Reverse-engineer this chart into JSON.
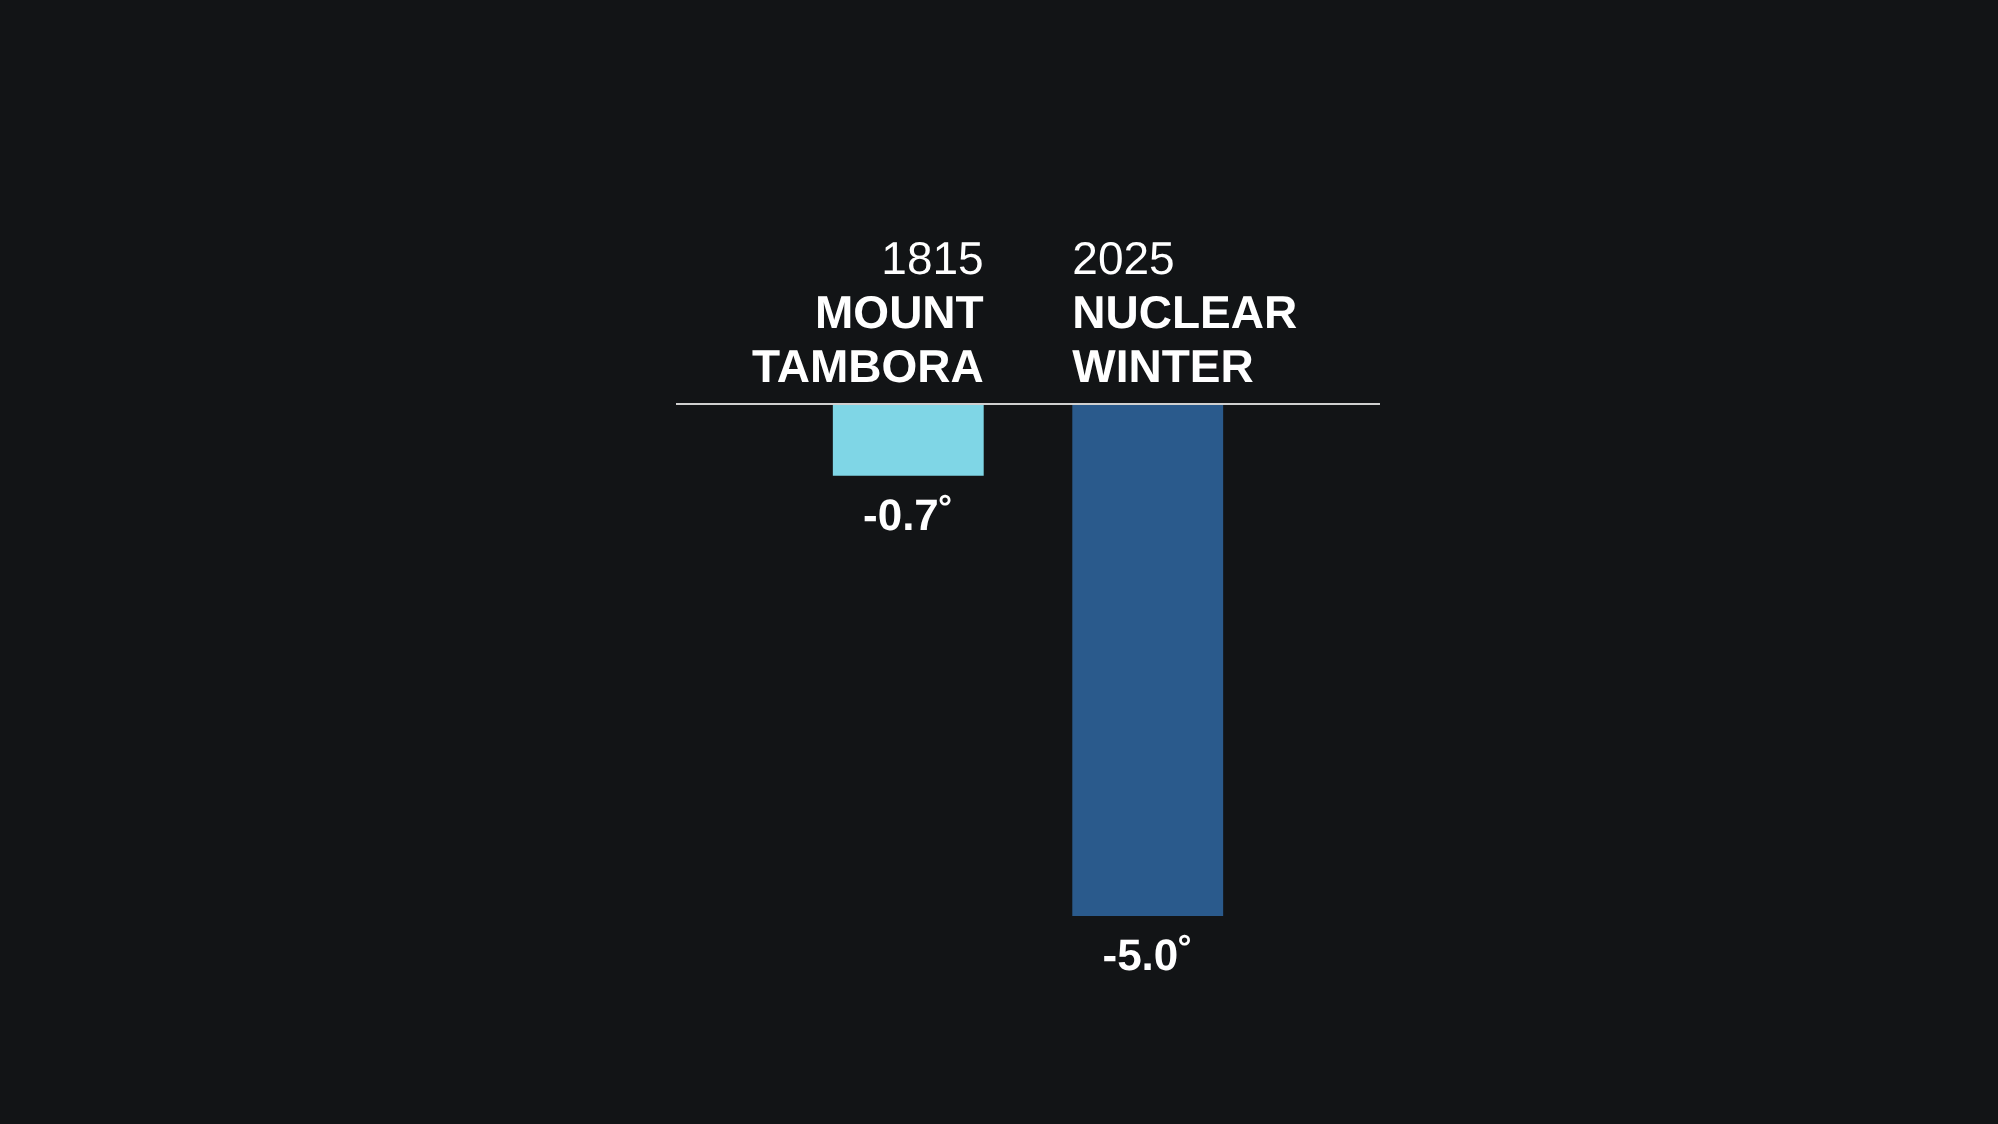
{
  "chart_data": {
    "type": "bar",
    "categories": [
      "1815\nMOUNT\nTAMBORA",
      "2025\nNUCLEAR\nWINTER"
    ],
    "values": [
      -0.7,
      -5.0
    ],
    "colors": [
      "#7fd6e6",
      "#2a5a8c"
    ],
    "value_labels": [
      "-0.7˚",
      "-5.0˚"
    ]
  }
}
